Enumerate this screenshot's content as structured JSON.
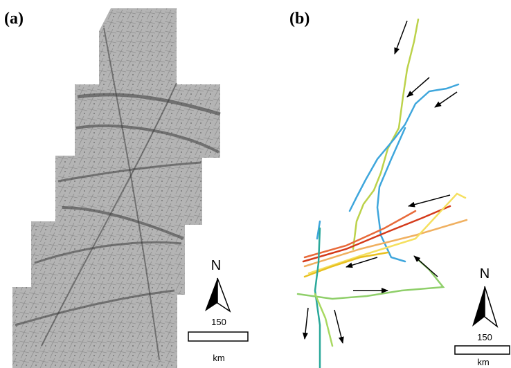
{
  "panels": [
    {
      "label": "(a)",
      "north": "N",
      "scale_value": 150,
      "scale_unit": "km"
    },
    {
      "label": "(b)",
      "north": "N",
      "scale_value": 150,
      "scale_unit": "km"
    }
  ]
}
